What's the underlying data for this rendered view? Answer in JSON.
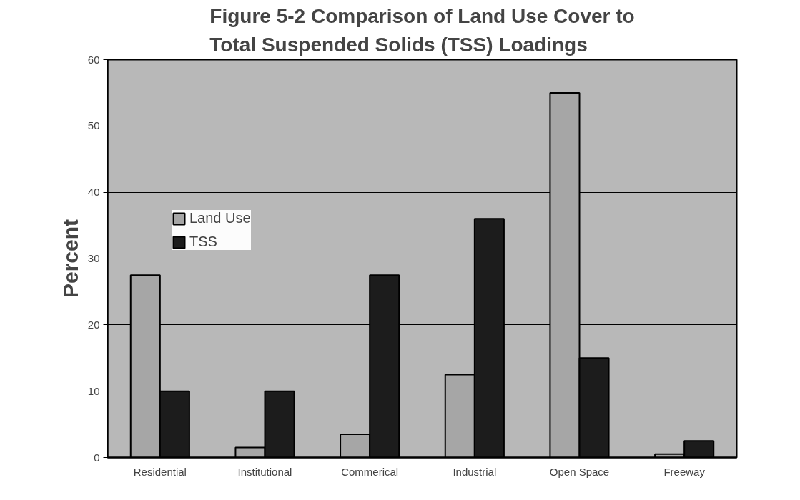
{
  "chart_data": {
    "type": "bar",
    "title": "Figure 5-2 Comparison of Land Use Cover to\nTotal Suspended Solids (TSS) Loadings",
    "ylabel": "Percent",
    "categories": [
      "Residential",
      "Institutional",
      "Commerical",
      "Industrial",
      "Open Space",
      "Freeway"
    ],
    "series": [
      {
        "name": "Land Use",
        "color": "#a6a6a6",
        "values": [
          27.5,
          1.5,
          3.5,
          12.5,
          55,
          0.5
        ]
      },
      {
        "name": "TSS",
        "color": "#1c1c1c",
        "values": [
          10,
          10,
          27.5,
          36,
          15,
          2.5
        ]
      }
    ],
    "ylim": [
      0,
      60
    ],
    "yticks": [
      0,
      10,
      20,
      30,
      40,
      50,
      60
    ],
    "grid": "y",
    "legend": "top left"
  }
}
